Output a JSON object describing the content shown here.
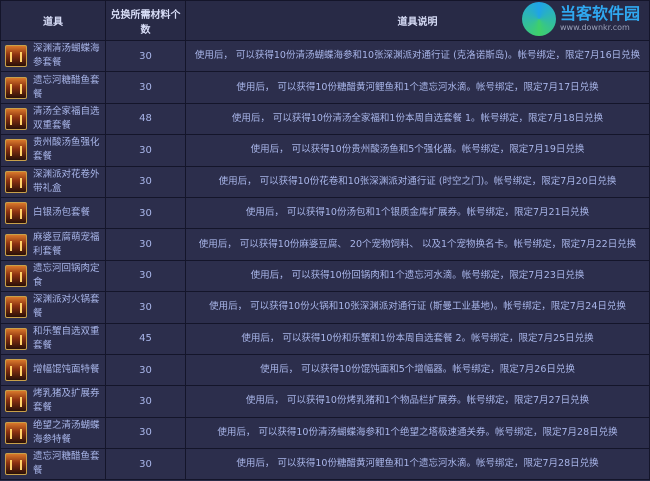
{
  "header": {
    "col_item": "道具",
    "col_count": "兑换所需材料个数",
    "col_desc": "道具说明"
  },
  "rows": [
    {
      "name": "深渊清汤蝴蝶海参套餐",
      "count": "30",
      "desc": "使用后， 可以获得10份清汤蝴蝶海参和10张深渊派对通行证 (克洛诺斯岛)。帐号绑定，限定7月16日兑换"
    },
    {
      "name": "遗忘河糖醋鱼套餐",
      "count": "30",
      "desc": "使用后， 可以获得10份糖醋黄河鲤鱼和1个遗忘河水滴。帐号绑定，限定7月17日兑换"
    },
    {
      "name": "清汤全家福自选双重套餐",
      "count": "48",
      "desc": "使用后， 可以获得10份清汤全家福和1份本周自选套餐 1。帐号绑定，限定7月18日兑换"
    },
    {
      "name": "贵州酸汤鱼强化套餐",
      "count": "30",
      "desc": "使用后， 可以获得10份贵州酸汤鱼和5个强化器。帐号绑定，限定7月19日兑换"
    },
    {
      "name": "深渊派对花卷外带礼盒",
      "count": "30",
      "desc": "使用后， 可以获得10份花卷和10张深渊派对通行证 (时空之门)。帐号绑定，限定7月20日兑换"
    },
    {
      "name": "白银汤包套餐",
      "count": "30",
      "desc": "使用后， 可以获得10份汤包和1个银质金库扩展券。帐号绑定，限定7月21日兑换"
    },
    {
      "name": "麻婆豆腐萌宠福利套餐",
      "count": "30",
      "desc": "使用后， 可以获得10份麻婆豆腐、 20个宠物饲料、 以及1个宠物换名卡。帐号绑定，限定7月22日兑换"
    },
    {
      "name": "遗忘河回锅肉定食",
      "count": "30",
      "desc": "使用后， 可以获得10份回锅肉和1个遗忘河水滴。帐号绑定，限定7月23日兑换"
    },
    {
      "name": "深渊派对火锅套餐",
      "count": "30",
      "desc": "使用后， 可以获得10份火锅和10张深渊派对通行证 (斯曼工业基地)。帐号绑定，限定7月24日兑换"
    },
    {
      "name": "和乐蟹自选双重套餐",
      "count": "45",
      "desc": "使用后， 可以获得10份和乐蟹和1份本周自选套餐 2。帐号绑定，限定7月25日兑换"
    },
    {
      "name": "增幅馄饨面特餐",
      "count": "30",
      "desc": "使用后， 可以获得10份馄饨面和5个增幅器。帐号绑定，限定7月26日兑换"
    },
    {
      "name": "烤乳猪及扩展券套餐",
      "count": "30",
      "desc": "使用后， 可以获得10份烤乳猪和1个物品栏扩展券。帐号绑定，限定7月27日兑换"
    },
    {
      "name": "绝望之清汤蝴蝶海参特餐",
      "count": "30",
      "desc": "使用后， 可以获得10份清汤蝴蝶海参和1个绝望之塔极速通关券。帐号绑定，限定7月28日兑换"
    },
    {
      "name": "遗忘河糖醋鱼套餐",
      "count": "30",
      "desc": "使用后， 可以获得10份糖醋黄河鲤鱼和1个遗忘河水滴。帐号绑定，限定7月28日兑换"
    }
  ],
  "watermark": {
    "title": "当客软件园",
    "url": "www.downkr.com"
  },
  "colors": {
    "background": "#2c2e4c",
    "border": "#14152a",
    "text": "#a9b6ea"
  }
}
